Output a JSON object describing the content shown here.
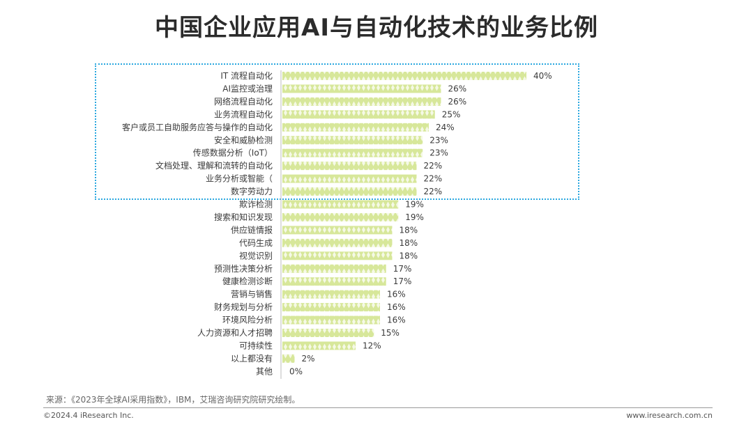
{
  "title": "中国企业应用AI与自动化技术的业务比例",
  "source": "来源：《2023年全球AI采用指数》，IBM，艾瑞咨询研究院研究绘制。",
  "copyright": "©2024.4 iResearch Inc.",
  "website": "www.iresearch.com.cn",
  "colors": {
    "bar": "#d7e79a",
    "bar_pattern": "#ffffff",
    "highlight": "#29a7df",
    "text": "#3a3a3a"
  },
  "chart_data": {
    "type": "bar",
    "orientation": "horizontal",
    "categories": [
      "IT 流程自动化",
      "AI监控或治理",
      "网络流程自动化",
      "业务流程自动化",
      "客户或员工自助服务应答与操作的自动化",
      "安全和威胁检测",
      "传感数据分析（IoT）",
      "文档处理、理解和流转的自动化",
      "业务分析或智能（",
      "数字劳动力",
      "欺诈检测",
      "搜索和知识发现",
      "供应链情报",
      "代码生成",
      "视觉识别",
      "预测性决策分析",
      "健康检测诊断",
      "营销与销售",
      "财务规划与分析",
      "环境风险分析",
      "人力资源和人才招聘",
      "可持续性",
      "以上都没有",
      "其他"
    ],
    "values": [
      40,
      26,
      26,
      25,
      24,
      23,
      23,
      22,
      22,
      22,
      19,
      19,
      18,
      18,
      18,
      17,
      17,
      16,
      16,
      16,
      15,
      12,
      2,
      0
    ],
    "value_labels": [
      "40%",
      "26%",
      "26%",
      "25%",
      "24%",
      "23%",
      "23%",
      "22%",
      "22%",
      "22%",
      "19%",
      "19%",
      "18%",
      "18%",
      "18%",
      "17%",
      "17%",
      "16%",
      "16%",
      "16%",
      "15%",
      "12%",
      "2%",
      "0%"
    ],
    "unit": "%",
    "highlighted_top": 10
  }
}
